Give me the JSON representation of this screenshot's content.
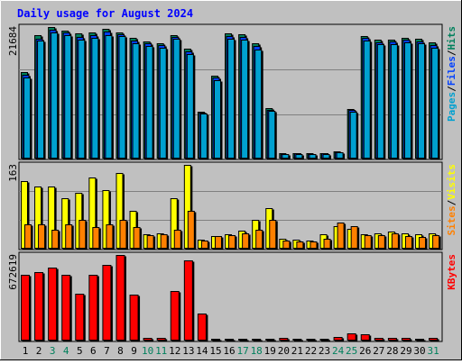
{
  "title": "Daily usage for August 2024",
  "colors": {
    "background": "#c0c0c0",
    "title": "#0000ff",
    "pages": "#00a0d0",
    "files": "#0040ff",
    "hits": "#00805c",
    "sites": "#ff8000",
    "visits": "#ffff00",
    "kbytes": "#ff0000",
    "weekend_label": "#00805c",
    "weekday_label": "#000000"
  },
  "chart_data": [
    {
      "type": "bar",
      "panel": "hits-files-pages",
      "max_label": "21684",
      "ylim": [
        0,
        21684
      ],
      "legend": [
        {
          "key": "pages",
          "label": "Pages"
        },
        {
          "key": "sep1",
          "label": "/"
        },
        {
          "key": "files",
          "label": "Files"
        },
        {
          "key": "sep2",
          "label": "/"
        },
        {
          "key": "hits",
          "label": "Hits"
        }
      ],
      "categories": [
        "1",
        "2",
        "3",
        "4",
        "5",
        "6",
        "7",
        "8",
        "9",
        "10",
        "11",
        "12",
        "13",
        "14",
        "15",
        "16",
        "17",
        "18",
        "19",
        "20",
        "21",
        "22",
        "23",
        "24",
        "25",
        "26",
        "27",
        "28",
        "29",
        "30",
        "31"
      ],
      "series": [
        {
          "name": "Hits",
          "values": [
            14240,
            20280,
            21690,
            21120,
            20590,
            20750,
            21460,
            20860,
            19900,
            19300,
            19070,
            20340,
            18140,
            7760,
            13730,
            20660,
            20510,
            18960,
            8380,
            910,
            920,
            900,
            920,
            1210,
            8190,
            20200,
            19570,
            19670,
            19920,
            19720,
            19110
          ]
        },
        {
          "name": "Files",
          "values": [
            13830,
            19820,
            21170,
            20740,
            20100,
            20320,
            20940,
            20520,
            19460,
            18940,
            18670,
            20040,
            17720,
            7560,
            13360,
            20220,
            20080,
            18500,
            8090,
            810,
            830,
            810,
            830,
            1100,
            7970,
            19830,
            19200,
            19280,
            19540,
            19330,
            18720
          ]
        },
        {
          "name": "Pages",
          "values": [
            13440,
            19400,
            20780,
            20370,
            19640,
            19900,
            20420,
            20180,
            19020,
            18580,
            18270,
            19740,
            17300,
            7360,
            12990,
            19780,
            19650,
            18040,
            7800,
            700,
            740,
            720,
            740,
            990,
            7750,
            19460,
            18830,
            18890,
            19160,
            18940,
            18330
          ]
        }
      ]
    },
    {
      "type": "bar",
      "panel": "visits-sites",
      "max_label": "163",
      "ylim": [
        0,
        163
      ],
      "legend": [
        {
          "key": "sites",
          "label": "Sites"
        },
        {
          "key": "sep1",
          "label": "/"
        },
        {
          "key": "visits",
          "label": "Visits"
        }
      ],
      "categories": [
        "1",
        "2",
        "3",
        "4",
        "5",
        "6",
        "7",
        "8",
        "9",
        "10",
        "11",
        "12",
        "13",
        "14",
        "15",
        "16",
        "17",
        "18",
        "19",
        "20",
        "21",
        "22",
        "23",
        "24",
        "25",
        "26",
        "27",
        "28",
        "29",
        "30",
        "31"
      ],
      "series": [
        {
          "name": "Visits",
          "values": [
            132,
            121,
            121,
            98,
            109,
            138,
            114,
            147,
            73,
            28,
            30,
            98,
            163,
            18,
            25,
            28,
            35,
            56,
            79,
            20,
            18,
            16,
            28,
            44,
            38,
            28,
            30,
            33,
            30,
            28,
            30
          ]
        },
        {
          "name": "Sites",
          "values": [
            47,
            47,
            37,
            47,
            56,
            42,
            47,
            56,
            42,
            26,
            28,
            37,
            74,
            16,
            24,
            26,
            30,
            37,
            56,
            16,
            14,
            14,
            19,
            51,
            44,
            26,
            26,
            30,
            24,
            23,
            26
          ]
        }
      ]
    },
    {
      "type": "bar",
      "panel": "kbytes",
      "max_label": "672619",
      "ylim": [
        0,
        672619
      ],
      "legend": [
        {
          "key": "kbytes",
          "label": "KBytes"
        }
      ],
      "categories": [
        "1",
        "2",
        "3",
        "4",
        "5",
        "6",
        "7",
        "8",
        "9",
        "10",
        "11",
        "12",
        "13",
        "14",
        "15",
        "16",
        "17",
        "18",
        "19",
        "20",
        "21",
        "22",
        "23",
        "24",
        "25",
        "26",
        "27",
        "28",
        "29",
        "30",
        "31"
      ],
      "series": [
        {
          "name": "KBytes",
          "values": [
            517000,
            537000,
            575000,
            517000,
            371000,
            517000,
            594000,
            672619,
            361000,
            24000,
            24000,
            386000,
            629000,
            214000,
            14000,
            14000,
            14000,
            14000,
            14000,
            24000,
            14000,
            14000,
            14000,
            29000,
            58000,
            48000,
            19000,
            24000,
            19000,
            14000,
            19000
          ]
        }
      ]
    }
  ]
}
